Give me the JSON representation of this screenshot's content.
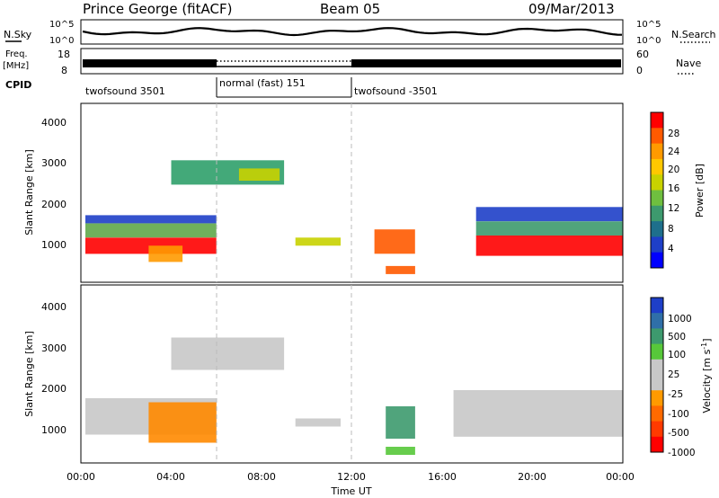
{
  "header": {
    "station": "Prince George (fitACF)",
    "beam": "Beam 05",
    "date": "09/Mar/2013"
  },
  "top_panels": {
    "nsky_label": "N.Sky",
    "nsky_ticks": [
      "10^5",
      "10^0"
    ],
    "nsearch_label": "N.Search",
    "nsearch_ticks": [
      "10^5",
      "10^0"
    ],
    "freq_label_line1": "Freq.",
    "freq_label_line2": "[MHz]",
    "freq_ticks": [
      "18",
      "8"
    ],
    "nave_label": "Nave",
    "nave_ticks": [
      "60",
      "0"
    ],
    "cpid_label": "CPID",
    "cpid_segments": [
      {
        "label": "twofsound 3501",
        "start_h": 0,
        "end_h": 6
      },
      {
        "label": "normal (fast) 151",
        "start_h": 6,
        "end_h": 12
      },
      {
        "label": "twofsound -3501",
        "start_h": 12,
        "end_h": 24
      }
    ]
  },
  "axes": {
    "ylabel": "Slant Range [km]",
    "yticks": [
      "4000",
      "3000",
      "2000",
      "1000"
    ],
    "xlabel": "Time UT",
    "xticks": [
      "00:00",
      "04:00",
      "08:00",
      "12:00",
      "16:00",
      "20:00",
      "00:00"
    ]
  },
  "power_colorbar": {
    "label": "Power [dB]",
    "ticks": [
      "28",
      "24",
      "20",
      "16",
      "12",
      "8",
      "4"
    ],
    "colors": [
      "#ff0000",
      "#ff5a00",
      "#ff9a00",
      "#ffc800",
      "#c8d200",
      "#6fbf3f",
      "#3d9a6e",
      "#1e6f8c",
      "#1e3fc8",
      "#0000ff"
    ]
  },
  "velocity_colorbar": {
    "label": "Velocity [m s",
    "label_sup": "-1",
    "label_end": "]",
    "ticks": [
      "1000",
      "500",
      "100",
      "25",
      "-25",
      "-100",
      "-500",
      "-1000"
    ],
    "colors": [
      "#1e3fc8",
      "#2f6fa8",
      "#3d9a6e",
      "#57c83a",
      "#c8c8c8",
      "#c8c8c8",
      "#ff9a00",
      "#ff6a00",
      "#ff3a00",
      "#ff0000"
    ]
  },
  "chart_data": {
    "type": "heatmap",
    "x_range_hours": [
      0,
      24
    ],
    "y_range_km": [
      200,
      4600
    ],
    "power_regions": [
      {
        "t0": 0.2,
        "t1": 6.0,
        "r0": 900,
        "r1": 1300,
        "color": "#ff0000"
      },
      {
        "t0": 0.2,
        "t1": 6.0,
        "r0": 1300,
        "r1": 1650,
        "color": "#5fa84a"
      },
      {
        "t0": 0.2,
        "t1": 6.0,
        "r0": 1650,
        "r1": 1850,
        "color": "#1e3fc8"
      },
      {
        "t0": 3.0,
        "t1": 4.5,
        "r0": 700,
        "r1": 1100,
        "color": "#ff9a00"
      },
      {
        "t0": 4.0,
        "t1": 9.0,
        "r0": 2600,
        "r1": 3200,
        "color": "#2fa06a"
      },
      {
        "t0": 7.0,
        "t1": 8.8,
        "r0": 2700,
        "r1": 3000,
        "color": "#c8d200"
      },
      {
        "t0": 9.5,
        "t1": 11.5,
        "r0": 1100,
        "r1": 1300,
        "color": "#c8d200"
      },
      {
        "t0": 13.0,
        "t1": 14.8,
        "r0": 900,
        "r1": 1500,
        "color": "#ff5a00"
      },
      {
        "t0": 13.5,
        "t1": 14.8,
        "r0": 400,
        "r1": 600,
        "color": "#ff5a00"
      },
      {
        "t0": 17.5,
        "t1": 24.0,
        "r0": 850,
        "r1": 1350,
        "color": "#ff0000"
      },
      {
        "t0": 17.5,
        "t1": 24.0,
        "r0": 1350,
        "r1": 1700,
        "color": "#3d9a6e"
      },
      {
        "t0": 17.5,
        "t1": 24.0,
        "r0": 1700,
        "r1": 2050,
        "color": "#1e3fc8"
      }
    ],
    "velocity_regions": [
      {
        "t0": 0.2,
        "t1": 6.0,
        "r0": 900,
        "r1": 1800,
        "color": "#c8c8c8"
      },
      {
        "t0": 3.0,
        "t1": 6.0,
        "r0": 700,
        "r1": 1700,
        "color": "#ff8a00"
      },
      {
        "t0": 4.0,
        "t1": 9.0,
        "r0": 2500,
        "r1": 3300,
        "color": "#c8c8c8"
      },
      {
        "t0": 9.5,
        "t1": 11.5,
        "r0": 1100,
        "r1": 1300,
        "color": "#c8c8c8"
      },
      {
        "t0": 13.5,
        "t1": 14.8,
        "r0": 800,
        "r1": 1600,
        "color": "#3d9a6e"
      },
      {
        "t0": 13.5,
        "t1": 14.8,
        "r0": 400,
        "r1": 600,
        "color": "#57c83a"
      },
      {
        "t0": 16.5,
        "t1": 24.0,
        "r0": 850,
        "r1": 2000,
        "color": "#c8c8c8"
      }
    ]
  }
}
